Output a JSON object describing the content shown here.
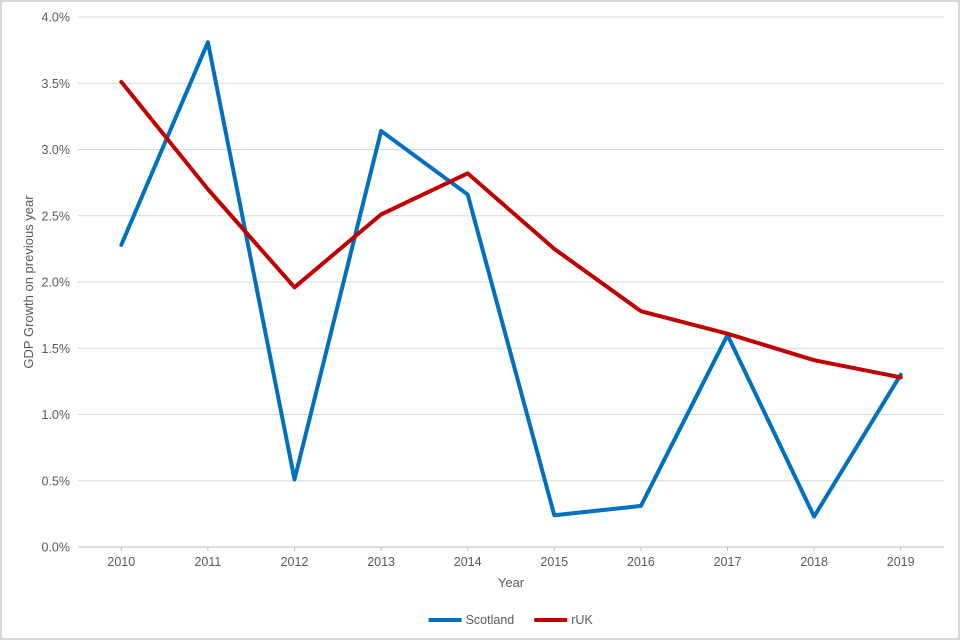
{
  "chart_data": {
    "type": "line",
    "title": "",
    "xlabel": "Year",
    "ylabel": "GDP Growth on previous year",
    "x": [
      "2010",
      "2011",
      "2012",
      "2013",
      "2014",
      "2015",
      "2016",
      "2017",
      "2018",
      "2019"
    ],
    "series": [
      {
        "name": "Scotland",
        "color": "#0070C0",
        "values": [
          2.28,
          3.81,
          0.51,
          3.14,
          2.66,
          0.24,
          0.31,
          1.6,
          0.23,
          1.3
        ]
      },
      {
        "name": "rUK",
        "color": "#C00000",
        "values": [
          3.51,
          2.7,
          1.96,
          2.51,
          2.82,
          2.25,
          1.78,
          1.61,
          1.41,
          1.28
        ]
      }
    ],
    "ylim": [
      0,
      4
    ],
    "yticks": {
      "values": [
        0,
        0.5,
        1,
        1.5,
        2,
        2.5,
        3,
        3.5,
        4
      ],
      "labels": [
        "0.0%",
        "0.5%",
        "1.0%",
        "1.5%",
        "2.0%",
        "2.5%",
        "3.0%",
        "3.5%",
        "4.0%"
      ]
    },
    "grid": true,
    "legend_position": "bottom"
  },
  "colors": {
    "gridline": "#D9D9D9",
    "axis_line": "#BFBFBF",
    "text": "#595959",
    "background": "#FFFFFF",
    "frame_border": "#D9D9D9"
  }
}
